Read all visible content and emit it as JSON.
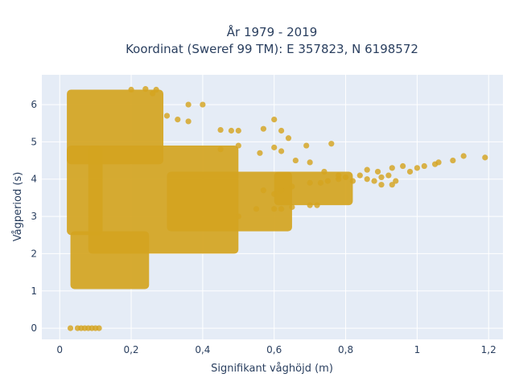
{
  "chart_data": {
    "type": "scatter",
    "title_line1": "År 1979 - 2019",
    "title_line2": "Koordinat (Sweref 99 TM): E 357823, N 6198572",
    "xlabel": "Signifikant våghöjd (m)",
    "ylabel": "Vågperiod (s)",
    "xlim": [
      -0.05,
      1.24
    ],
    "ylim": [
      -0.3,
      6.8
    ],
    "x_ticks": [
      0,
      0.2,
      0.4,
      0.6,
      0.8,
      1,
      1.2
    ],
    "x_tick_labels": [
      "0",
      "0,2",
      "0,4",
      "0,6",
      "0,8",
      "1",
      "1,2"
    ],
    "y_ticks": [
      0,
      1,
      2,
      3,
      4,
      5,
      6
    ],
    "y_tick_labels": [
      "0",
      "1",
      "2",
      "3",
      "4",
      "5",
      "6"
    ],
    "grid": true,
    "legend": "none",
    "marker_color": "#D4A420",
    "plot_bg": "#E5ECF6",
    "dense_regions": [
      {
        "x": [
          0.02,
          0.29
        ],
        "y": [
          4.4,
          6.4
        ]
      },
      {
        "x": [
          0.02,
          0.12
        ],
        "y": [
          2.5,
          4.9
        ]
      },
      {
        "x": [
          0.03,
          0.25
        ],
        "y": [
          1.05,
          2.6
        ]
      },
      {
        "x": [
          0.08,
          0.5
        ],
        "y": [
          2.0,
          4.9
        ]
      },
      {
        "x": [
          0.3,
          0.65
        ],
        "y": [
          2.6,
          4.2
        ]
      },
      {
        "x": [
          0.6,
          0.82
        ],
        "y": [
          3.3,
          4.2
        ]
      }
    ],
    "points": [
      [
        0.03,
        0.0
      ],
      [
        0.05,
        0.0
      ],
      [
        0.06,
        0.0
      ],
      [
        0.07,
        0.0
      ],
      [
        0.08,
        0.0
      ],
      [
        0.09,
        0.0
      ],
      [
        0.1,
        0.0
      ],
      [
        0.11,
        0.0
      ],
      [
        0.2,
        6.4
      ],
      [
        0.24,
        6.42
      ],
      [
        0.27,
        6.4
      ],
      [
        0.26,
        6.3
      ],
      [
        0.3,
        5.7
      ],
      [
        0.33,
        5.6
      ],
      [
        0.36,
        5.55
      ],
      [
        0.4,
        6.0
      ],
      [
        0.36,
        6.0
      ],
      [
        0.45,
        5.32
      ],
      [
        0.48,
        5.3
      ],
      [
        0.5,
        5.3
      ],
      [
        0.57,
        5.35
      ],
      [
        0.6,
        5.6
      ],
      [
        0.62,
        5.3
      ],
      [
        0.64,
        5.1
      ],
      [
        0.45,
        4.8
      ],
      [
        0.5,
        4.9
      ],
      [
        0.56,
        4.7
      ],
      [
        0.6,
        4.85
      ],
      [
        0.62,
        4.75
      ],
      [
        0.69,
        4.9
      ],
      [
        0.76,
        4.95
      ],
      [
        0.66,
        4.5
      ],
      [
        0.7,
        4.45
      ],
      [
        0.74,
        4.2
      ],
      [
        0.78,
        4.1
      ],
      [
        0.8,
        4.05
      ],
      [
        0.82,
        3.95
      ],
      [
        0.84,
        4.1
      ],
      [
        0.86,
        4.0
      ],
      [
        0.88,
        3.95
      ],
      [
        0.9,
        4.05
      ],
      [
        0.92,
        4.1
      ],
      [
        0.94,
        3.95
      ],
      [
        0.86,
        4.25
      ],
      [
        0.89,
        4.2
      ],
      [
        0.93,
        4.3
      ],
      [
        0.96,
        4.35
      ],
      [
        0.98,
        4.2
      ],
      [
        0.9,
        3.85
      ],
      [
        0.93,
        3.85
      ],
      [
        1.0,
        4.3
      ],
      [
        1.02,
        4.35
      ],
      [
        1.05,
        4.4
      ],
      [
        1.06,
        4.45
      ],
      [
        1.1,
        4.5
      ],
      [
        1.13,
        4.62
      ],
      [
        1.19,
        4.58
      ],
      [
        0.5,
        3.0
      ],
      [
        0.55,
        3.2
      ],
      [
        0.6,
        3.2
      ],
      [
        0.62,
        3.2
      ],
      [
        0.65,
        3.25
      ],
      [
        0.7,
        3.3
      ],
      [
        0.72,
        3.3
      ],
      [
        0.57,
        3.7
      ],
      [
        0.6,
        3.6
      ],
      [
        0.62,
        3.7
      ],
      [
        0.65,
        3.8
      ],
      [
        0.7,
        3.9
      ],
      [
        0.73,
        3.9
      ],
      [
        0.75,
        3.95
      ],
      [
        0.78,
        4.0
      ]
    ]
  }
}
